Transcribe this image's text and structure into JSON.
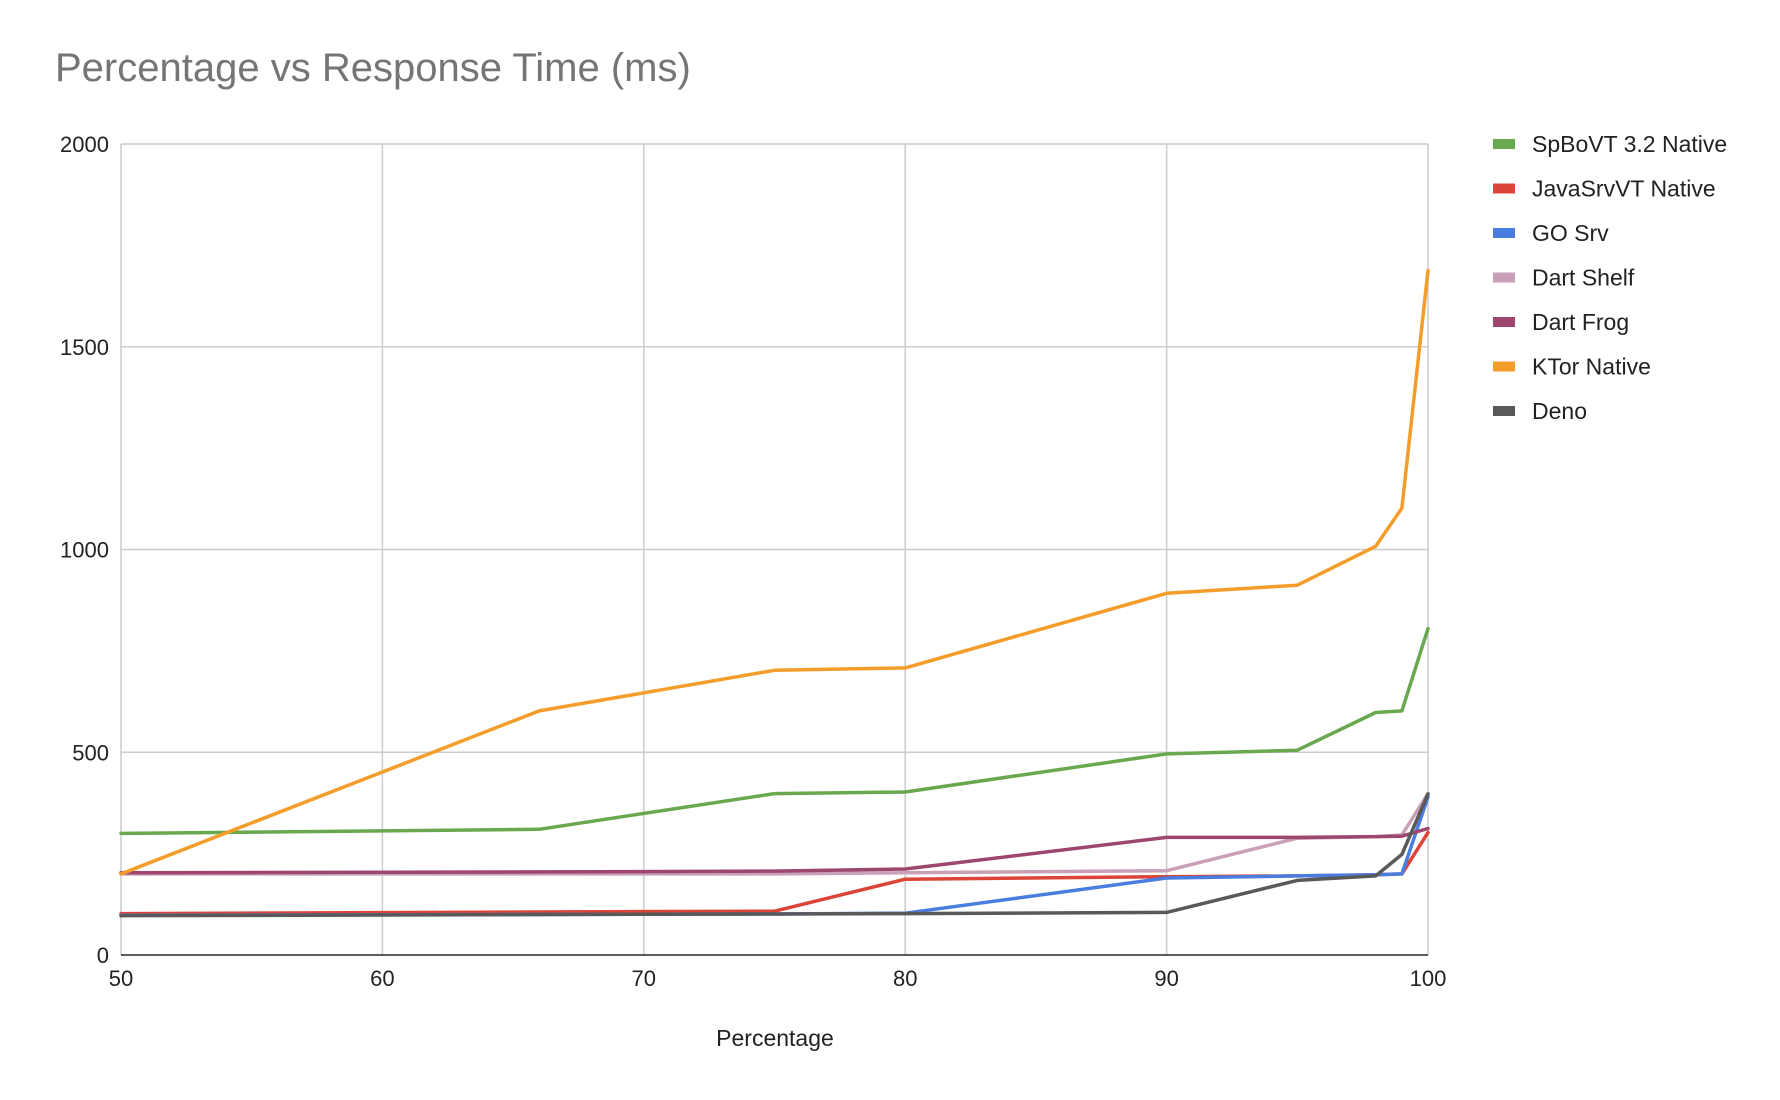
{
  "chart_data": {
    "type": "line",
    "title": "Percentage vs Response Time (ms)",
    "xlabel": "Percentage",
    "ylabel": "",
    "xlim": [
      50,
      100
    ],
    "ylim": [
      0,
      2000
    ],
    "x_ticks": [
      50,
      60,
      70,
      80,
      90,
      100
    ],
    "y_ticks": [
      0,
      500,
      1000,
      1500,
      2000
    ],
    "grid": true,
    "legend_position": "right",
    "x": [
      50,
      66,
      75,
      80,
      90,
      95,
      98,
      99,
      100
    ],
    "series": [
      {
        "name": "SpBoVT 3.2 Native",
        "color": "#6aa84f",
        "values": [
          300,
          310,
          398,
          402,
          496,
          505,
          598,
          602,
          805
        ]
      },
      {
        "name": "JavaSrvVT Native",
        "color": "#db4437",
        "values": [
          102,
          106,
          108,
          187,
          193,
          195,
          198,
          200,
          302
        ]
      },
      {
        "name": "GO Srv",
        "color": "#4a7de0",
        "values": [
          98,
          100,
          101,
          103,
          190,
          195,
          198,
          200,
          390
        ]
      },
      {
        "name": "Dart Shelf",
        "color": "#c9a0b5",
        "values": [
          200,
          200,
          200,
          203,
          208,
          288,
          292,
          296,
          398
        ]
      },
      {
        "name": "Dart Frog",
        "color": "#9c4670",
        "values": [
          203,
          205,
          207,
          212,
          290,
          290,
          292,
          293,
          312
        ]
      },
      {
        "name": "KTor Native",
        "color": "#f49d2a",
        "values": [
          200,
          602,
          702,
          708,
          892,
          912,
          1008,
          1102,
          1688
        ]
      },
      {
        "name": "Deno",
        "color": "#595959",
        "values": [
          97,
          100,
          101,
          102,
          105,
          184,
          195,
          248,
          397
        ]
      }
    ]
  }
}
